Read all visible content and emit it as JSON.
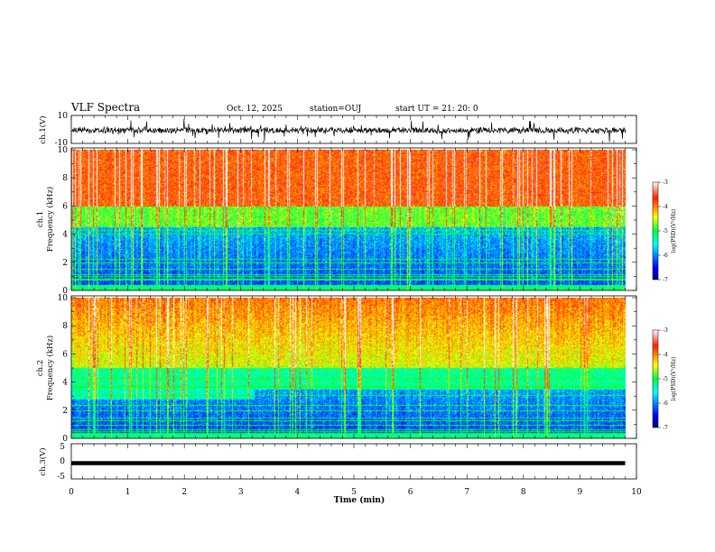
{
  "header": {
    "title": "VLF Spectra",
    "date": "Oct. 12, 2025",
    "station": "station=OUJ",
    "start": "start  UT  =  21: 20: 0"
  },
  "chart_data": [
    {
      "type": "line",
      "panel": "ch1-waveform",
      "ylabel": "ch.1(V)",
      "ylim": [
        -10,
        10
      ],
      "yticks": [
        "10",
        "-10"
      ],
      "xlim": [
        0,
        10
      ]
    },
    {
      "type": "heatmap",
      "panel": "ch1-spectrogram",
      "ylabel_line1": "ch.1",
      "ylabel_line2": "Frequency (kHz)",
      "ylim": [
        0,
        10
      ],
      "yticks": [
        "0",
        "2",
        "4",
        "6",
        "8",
        "10"
      ],
      "xlim": [
        0,
        10
      ],
      "colorbar": {
        "label": "log(PSD)(V²/Hz)",
        "range": [
          -7,
          -3
        ],
        "ticks": [
          "-3",
          "-4",
          "-5",
          "-6",
          "-7"
        ]
      }
    },
    {
      "type": "heatmap",
      "panel": "ch2-spectrogram",
      "ylabel_line1": "ch.2",
      "ylabel_line2": "Frequency (kHz)",
      "ylim": [
        0,
        10
      ],
      "yticks": [
        "0",
        "2",
        "4",
        "6",
        "8",
        "10"
      ],
      "xlim": [
        0,
        10
      ],
      "colorbar": {
        "label": "log(PSD)(V²/Hz)",
        "range": [
          -7,
          -3
        ],
        "ticks": [
          "-3",
          "-4",
          "-5",
          "-6",
          "-7"
        ]
      }
    },
    {
      "type": "line",
      "panel": "ch3-waveform",
      "ylabel": "ch.3(V)",
      "ylim": [
        -5,
        5
      ],
      "yticks": [
        "5",
        "0",
        "-5"
      ],
      "xlim": [
        0,
        10
      ],
      "series": [
        {
          "x": [
            0,
            9.8
          ],
          "y": [
            -0.5,
            -0.5
          ]
        }
      ]
    }
  ],
  "xaxis": {
    "label": "Time (min)",
    "ticks": [
      "0",
      "1",
      "2",
      "3",
      "4",
      "5",
      "6",
      "7",
      "8",
      "9",
      "10"
    ]
  }
}
